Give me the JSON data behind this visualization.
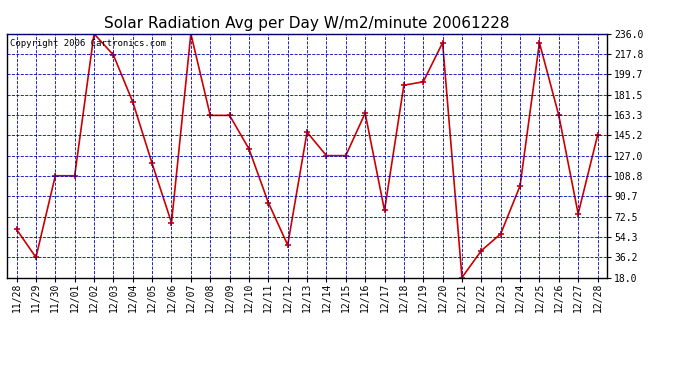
{
  "title": "Solar Radiation Avg per Day W/m2/minute 20061228",
  "copyright": "Copyright 2006 Cartronics.com",
  "dates": [
    "11/28",
    "11/29",
    "11/30",
    "12/01",
    "12/02",
    "12/03",
    "12/04",
    "12/05",
    "12/06",
    "12/07",
    "12/08",
    "12/09",
    "12/10",
    "12/11",
    "12/12",
    "12/13",
    "12/14",
    "12/15",
    "12/16",
    "12/17",
    "12/18",
    "12/19",
    "12/20",
    "12/21",
    "12/22",
    "12/23",
    "12/24",
    "12/25",
    "12/26",
    "12/27",
    "12/28"
  ],
  "values": [
    61,
    36,
    109,
    109,
    236,
    217,
    175,
    120,
    67,
    236,
    163,
    163,
    133,
    85,
    47,
    148,
    127,
    127,
    165,
    78,
    190,
    193,
    228,
    18,
    42,
    57,
    100,
    228,
    163,
    75,
    145
  ],
  "yticks": [
    18.0,
    36.2,
    54.3,
    72.5,
    90.7,
    108.8,
    127.0,
    145.2,
    163.3,
    181.5,
    199.7,
    217.8,
    236.0
  ],
  "line_color": "#cc0000",
  "marker_color": "#cc0000",
  "bg_color": "#ffffff",
  "plot_bg_color": "#ffffff",
  "grid_color": "#0000bb",
  "text_color": "#000000",
  "title_fontsize": 11,
  "tick_fontsize": 7,
  "copyright_fontsize": 6.5
}
